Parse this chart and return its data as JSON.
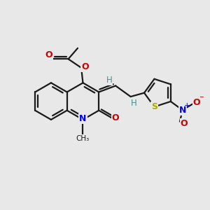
{
  "background_color": "#e8e8e8",
  "fig_size": [
    3.0,
    3.0
  ],
  "dpi": 100,
  "bond_color": "#1a1a1a",
  "bond_lw": 1.6,
  "atoms": {
    "N_color": "#0000ee",
    "O_color": "#cc0000",
    "S_color": "#aaaa00",
    "H_color": "#4a9090",
    "C_color": "#1a1a1a"
  },
  "xlim": [
    0,
    10
  ],
  "ylim": [
    0,
    10
  ]
}
